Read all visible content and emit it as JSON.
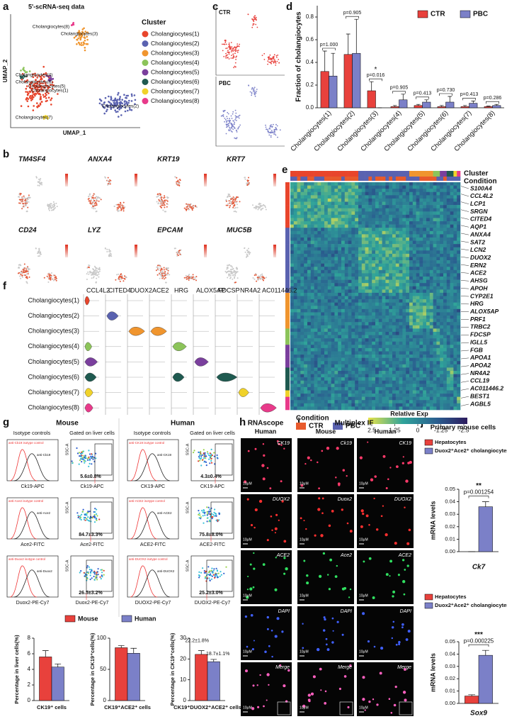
{
  "panel_a": {
    "letter": "a",
    "title": "5'-scRNA-seq data",
    "x_label": "UMAP_1",
    "y_label": "UMAP_2",
    "legend_title": "Cluster",
    "clusters": [
      {
        "name": "Cholangiocytes(1)",
        "color": "#e8452c"
      },
      {
        "name": "Cholangiocytes(2)",
        "color": "#5a62b0"
      },
      {
        "name": "Cholangiocytes(3)",
        "color": "#f0952e"
      },
      {
        "name": "Cholangiocytes(4)",
        "color": "#8cc45a"
      },
      {
        "name": "Cholangiocytes(5)",
        "color": "#7a3f9d"
      },
      {
        "name": "Cholangiocytes(6)",
        "color": "#1f5a50"
      },
      {
        "name": "Cholangiocytes(7)",
        "color": "#f0d22a"
      },
      {
        "name": "Cholangiocytes(8)",
        "color": "#e83a8a"
      }
    ]
  },
  "panel_b": {
    "letter": "b",
    "genes": [
      "TM4SF4",
      "ANXA4",
      "KRT19",
      "KRT7",
      "CD24",
      "LYZ",
      "EPCAM",
      "MUC5B"
    ]
  },
  "panel_c": {
    "letter": "c",
    "conditions": [
      "CTR",
      "PBC"
    ]
  },
  "panel_d": {
    "letter": "d",
    "type": "bar",
    "y_label": "Fraction of cholangiocytes",
    "categories": [
      "Cholangiocytes(1)",
      "Cholangiocytes(2)",
      "Cholangiocytes(3)",
      "Cholangiocytes(4)",
      "Cholangiocytes(5)",
      "Cholangiocytes(6)",
      "Cholangiocytes(7)",
      "Cholangiocytes(8)"
    ],
    "series": [
      {
        "name": "CTR",
        "color": "#e8413c",
        "values": [
          0.32,
          0.47,
          0.15,
          0.01,
          0.02,
          0.01,
          0.01,
          0.01
        ],
        "errors": [
          0.18,
          0.18,
          0.08,
          0.01,
          0.01,
          0.01,
          0.01,
          0.005
        ]
      },
      {
        "name": "PBC",
        "color": "#7b80c8",
        "values": [
          0.28,
          0.48,
          0.0,
          0.07,
          0.05,
          0.05,
          0.04,
          0.02
        ],
        "errors": [
          0.2,
          0.3,
          0.0,
          0.05,
          0.02,
          0.05,
          0.02,
          0.01
        ]
      }
    ],
    "ylim": [
      0,
      0.9
    ],
    "yticks": [
      {
        "value": 0,
        "label": "0.0"
      },
      0.2,
      0.4,
      0.6,
      0.8
    ],
    "annotations": [
      "p=1.000",
      "p=0.905",
      "p=0.016",
      "p=0.905",
      "p=0.413",
      "p=0.730",
      "p=0.413",
      "p=0.286"
    ],
    "significance_marks": [
      null,
      null,
      "*",
      null,
      null,
      null,
      null,
      null
    ]
  },
  "panel_e": {
    "letter": "e",
    "track_labels": [
      "Cluster",
      "Condition"
    ],
    "genes": [
      "S100A4",
      "CCL4L2",
      "LCP1",
      "SRGN",
      "CITED4",
      "AQP1",
      "ANXA4",
      "SAT2",
      "LCN2",
      "DUOX2",
      "ERN2",
      "ACE2",
      "AHSG",
      "APOH",
      "CYP2E1",
      "HRG",
      "ALOX5AP",
      "PRF1",
      "TRBC2",
      "FDCSP",
      "IGLL5",
      "FGB",
      "APOA1",
      "APOA2",
      "NR4A2",
      "CCL19",
      "AC011446.2",
      "BEST1",
      "AGBL5"
    ],
    "condition_title": "Condition",
    "conditions": [
      {
        "name": "CTR",
        "color": "#e85a2c"
      },
      {
        "name": "PBC",
        "color": "#5a62b0"
      }
    ],
    "colorbar_title": "Relative Exp",
    "colorbar_ticks": [
      2.5,
      1.25,
      0,
      -1.25,
      -2.5
    ]
  },
  "panel_f": {
    "letter": "f",
    "genes": [
      "CCL4L2",
      "CITED4",
      "DUOX2",
      "ACE2",
      "HRG",
      "ALOX5AP",
      "FDCSP",
      "NR4A2",
      "AC011446.2"
    ]
  },
  "panel_g": {
    "letter": "g",
    "species": [
      "Mouse",
      "Human"
    ],
    "isotype_title": "Isotype controls",
    "gated_title": "Gated on liver cells",
    "dot_y_label": "SSC-A",
    "mouse": [
      {
        "isotype": "anti-Ck19 isotype control",
        "antibody": "anti-Ck19",
        "marker": "Ck19-APC",
        "percent": "5.6±0.8%"
      },
      {
        "isotype": "anti-Ace2 isotype control",
        "antibody": "anti-Ace2",
        "marker": "Ace2-FITC",
        "percent": "84.7±3.3%"
      },
      {
        "isotype": "anti-Duox2 isotype control",
        "antibody": "anti-Duox2",
        "marker": "Duox2-PE-Cy7",
        "percent": "26.5±3.2%"
      }
    ],
    "human": [
      {
        "isotype": "anti-CK19 isotype control",
        "antibody": "anti-CK19",
        "marker": "CK19-APC",
        "percent": "4.3±0.4%"
      },
      {
        "isotype": "anti-ACE2 isotype control",
        "antibody": "anti-ACE2",
        "marker": "ACE2-FITC",
        "percent": "75.8±8.0%"
      },
      {
        "isotype": "anti-DUOX2 isotype control",
        "antibody": "anti-DUOX2",
        "marker": "DUOX2-PE-Cy7",
        "percent": "25.2±3.0%"
      }
    ],
    "legend": [
      {
        "name": "Mouse",
        "color": "#e8413c"
      },
      {
        "name": "Human",
        "color": "#7b80c8"
      }
    ],
    "charts": [
      {
        "y_label": "Percentage in liver cells(%)",
        "category": "CK19⁺ cells",
        "values": [
          5.6,
          4.3
        ],
        "errors": [
          0.8,
          0.4
        ],
        "ylim": [
          0,
          8
        ],
        "yticks": [
          0,
          2,
          4,
          6,
          8
        ]
      },
      {
        "y_label": "Percentage in CK19⁺cells(%)",
        "category": "CK19⁺ACE2⁺ cells",
        "values": [
          84.7,
          75.8
        ],
        "errors": [
          3.3,
          8.0
        ],
        "ylim": [
          0,
          100
        ],
        "yticks": [
          0,
          50,
          100
        ]
      },
      {
        "y_label": "Percentage in CK19⁺cells(%)",
        "category": "CK19⁺DUOX2⁺ACE2⁺ cells",
        "values": [
          22.2,
          18.7
        ],
        "errors": [
          1.8,
          1.1
        ],
        "value_labels": [
          "22.2±1.8%",
          "18.7±1.1%"
        ],
        "ylim": [
          0,
          30
        ],
        "yticks": [
          0,
          10,
          20,
          30
        ]
      }
    ]
  },
  "panel_h": {
    "letter": "h",
    "title": "RNAscope",
    "species": "Human",
    "channels": [
      "CK19",
      "DUOX2",
      "ACE2",
      "DAPI",
      "Merge"
    ],
    "scale_label": "10μM"
  },
  "panel_i": {
    "letter": "i",
    "title": "Multiplex IF",
    "scale_label": "10μM",
    "columns": [
      {
        "species": "Mouse",
        "channels": [
          "Ck19",
          "Duox2",
          "Ace2",
          "DAPI",
          "Merge"
        ]
      },
      {
        "species": "Human",
        "channels": [
          "CK19",
          "DUOX2",
          "ACE2",
          "DAPI",
          "Merge"
        ]
      }
    ]
  },
  "panel_j": {
    "letter": "j",
    "title": "Primary mouse cells",
    "legend": [
      {
        "name": "Hepatocytes",
        "color": "#e8413c"
      },
      {
        "name": "Duox2⁺Ace2⁺ cholangiocytes",
        "color": "#7b80c8"
      }
    ],
    "charts": [
      {
        "y_label": "mRNA levels",
        "gene": "Ck7",
        "values": [
          0.0,
          0.036
        ],
        "errors": [
          0.0,
          0.004
        ],
        "ylim": [
          0,
          0.05
        ],
        "yticks": [
          {
            "value": 0,
            "label": "0.00"
          },
          0.01,
          0.02,
          0.03,
          0.04,
          0.05
        ],
        "significance": "**",
        "p_value": "p=0.001254"
      },
      {
        "y_label": "mRNA levels",
        "gene": "Sox9",
        "values": [
          0.006,
          0.039
        ],
        "errors": [
          0.001,
          0.004
        ],
        "ylim": [
          0,
          0.05
        ],
        "yticks": [
          {
            "value": 0,
            "label": "0.00"
          },
          0.01,
          0.02,
          0.03,
          0.04,
          0.05
        ],
        "significance": "***",
        "p_value": "p=0.000225"
      }
    ]
  }
}
